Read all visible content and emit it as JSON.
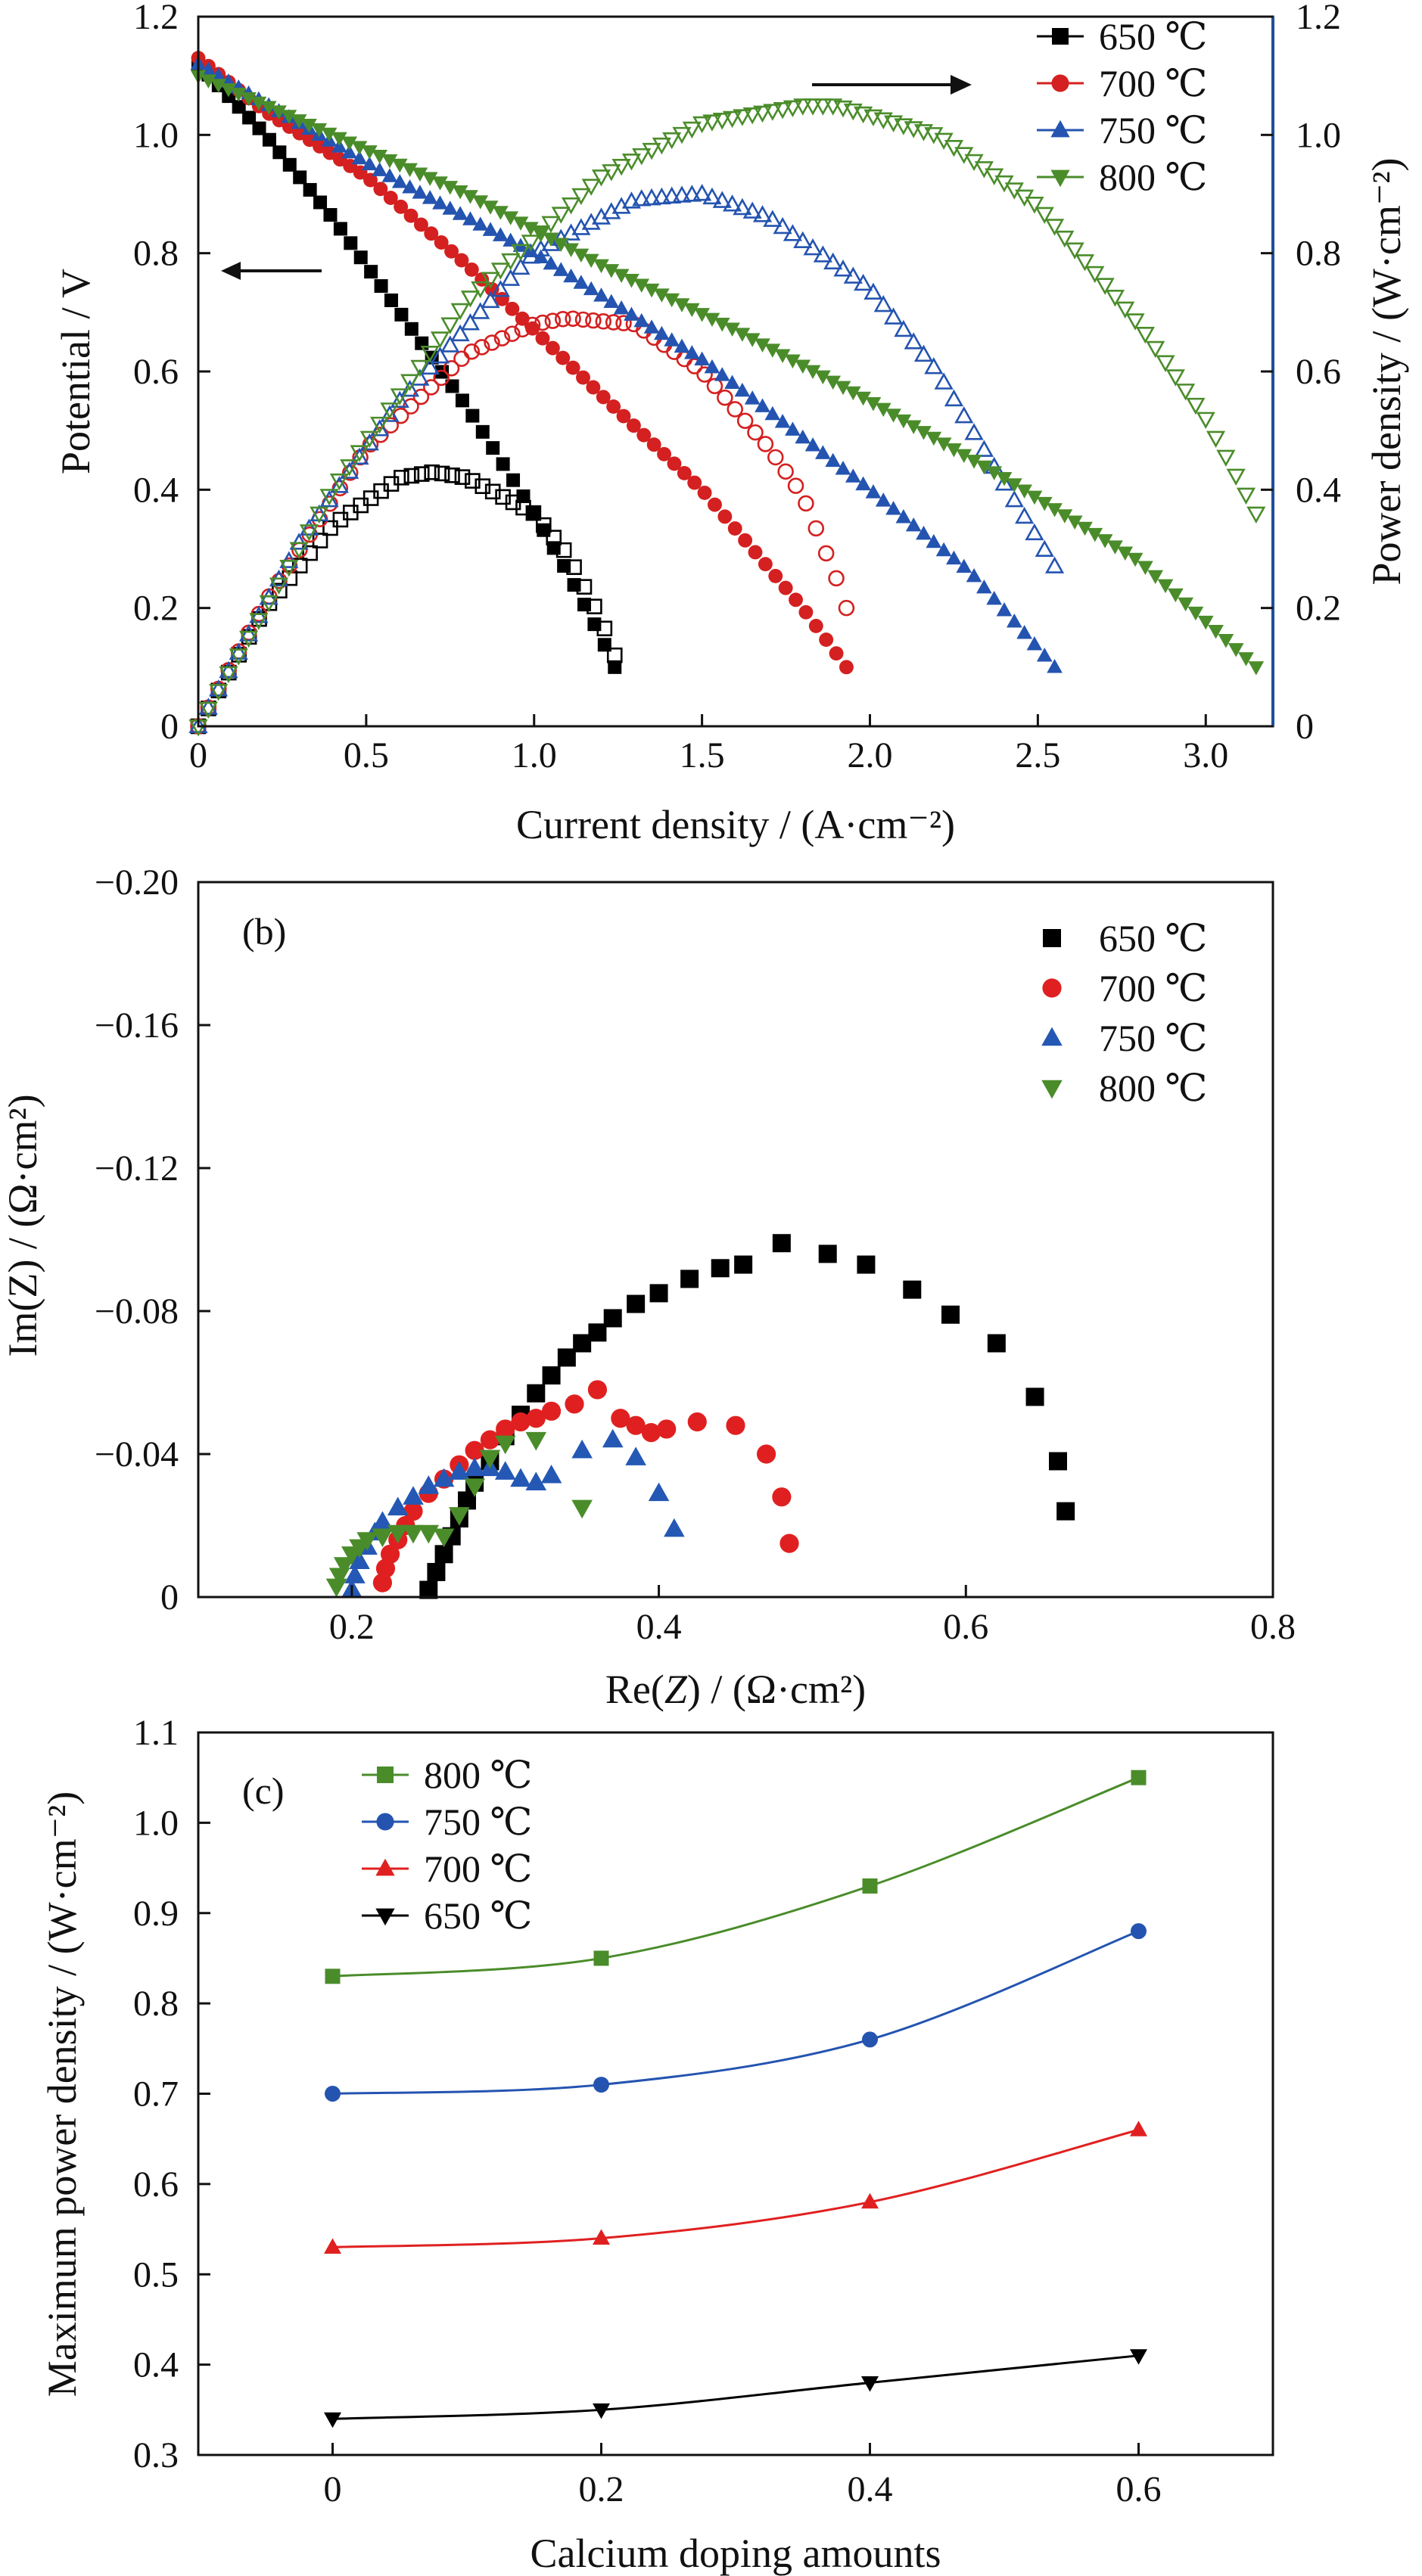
{
  "chart_data": [
    {
      "panel": "a",
      "type": "line",
      "xlabel": "Current density / (A·cm⁻²)",
      "ylabel_left": "Potential / V",
      "ylabel_right": "Power density / (W·cm⁻²)",
      "xlim": [
        0,
        3.2
      ],
      "ylim_left": [
        0,
        1.2
      ],
      "ylim_right": [
        0,
        1.2
      ],
      "xticks": [
        "0",
        "0.5",
        "1.0",
        "1.5",
        "2.0",
        "2.5",
        "3.0"
      ],
      "yticks_left": [
        "0",
        "0.2",
        "0.4",
        "0.6",
        "0.8",
        "1.0",
        "1.2"
      ],
      "yticks_right": [
        "0",
        "0.2",
        "0.4",
        "0.6",
        "0.8",
        "1.0",
        "1.2"
      ],
      "right_axis_color": "#1f4e9c",
      "arrows": [
        "left (Potential)",
        "right (Power density)"
      ],
      "legend_position": "top-right",
      "series": [
        {
          "name": "650 ℃",
          "color": "#000000",
          "marker": "square",
          "voltage": {
            "x": [
              0,
              0.2,
              0.4,
              0.6,
              0.8,
              1.0,
              1.1,
              1.2,
              1.24
            ],
            "y": [
              1.12,
              1.0,
              0.86,
              0.7,
              0.54,
              0.36,
              0.26,
              0.15,
              0.1
            ]
          },
          "power": {
            "x": [
              0,
              0.2,
              0.4,
              0.6,
              0.7,
              0.8,
              1.0,
              1.1,
              1.2,
              1.24
            ],
            "y": [
              0.0,
              0.2,
              0.34,
              0.42,
              0.43,
              0.42,
              0.36,
              0.29,
              0.18,
              0.12
            ]
          }
        },
        {
          "name": "700 ℃",
          "color": "#d42020",
          "marker": "circle",
          "voltage": {
            "x": [
              0,
              0.2,
              0.5,
              0.8,
              1.0,
              1.2,
              1.5,
              1.8,
              1.93
            ],
            "y": [
              1.13,
              1.04,
              0.93,
              0.78,
              0.67,
              0.56,
              0.4,
              0.2,
              0.1
            ]
          },
          "power": {
            "x": [
              0,
              0.2,
              0.5,
              0.8,
              1.0,
              1.1,
              1.3,
              1.5,
              1.7,
              1.8,
              1.9,
              1.93
            ],
            "y": [
              0.0,
              0.21,
              0.47,
              0.63,
              0.68,
              0.69,
              0.68,
              0.6,
              0.47,
              0.39,
              0.25,
              0.2
            ]
          }
        },
        {
          "name": "750 ℃",
          "color": "#2454b0",
          "marker": "triangle-up",
          "voltage": {
            "x": [
              0,
              0.3,
              0.6,
              1.0,
              1.5,
              2.0,
              2.3,
              2.55
            ],
            "y": [
              1.12,
              1.02,
              0.92,
              0.8,
              0.62,
              0.4,
              0.26,
              0.1
            ]
          },
          "power": {
            "x": [
              0,
              0.3,
              0.6,
              1.0,
              1.3,
              1.5,
              1.7,
              2.0,
              2.2,
              2.4,
              2.55
            ],
            "y": [
              0.0,
              0.31,
              0.55,
              0.8,
              0.89,
              0.9,
              0.86,
              0.74,
              0.6,
              0.41,
              0.27
            ]
          }
        },
        {
          "name": "800 ℃",
          "color": "#4a8c2a",
          "marker": "triangle-down",
          "voltage": {
            "x": [
              0,
              0.4,
              0.8,
              1.2,
              1.6,
              2.0,
              2.4,
              2.8,
              3.15
            ],
            "y": [
              1.1,
              1.0,
              0.9,
              0.78,
              0.67,
              0.55,
              0.42,
              0.28,
              0.1
            ]
          },
          "power": {
            "x": [
              0,
              0.4,
              0.8,
              1.2,
              1.5,
              1.8,
              1.9,
              2.2,
              2.5,
              2.8,
              3.0,
              3.15
            ],
            "y": [
              0.0,
              0.4,
              0.72,
              0.93,
              1.02,
              1.05,
              1.05,
              1.0,
              0.88,
              0.68,
              0.52,
              0.36
            ]
          }
        }
      ]
    },
    {
      "panel": "b",
      "type": "scatter",
      "annotation": "(b)",
      "xlabel_prefix": "Re(",
      "xlabel_italic": "Z",
      "xlabel_suffix": ") / (Ω·cm²)",
      "ylabel": "Im(Z) / (Ω·cm²)",
      "xlim": [
        0.1,
        0.8
      ],
      "ylim": [
        0,
        -0.2
      ],
      "xticks": [
        "0.2",
        "0.4",
        "0.6",
        "0.8"
      ],
      "yticks": [
        "0",
        "−0.04",
        "−0.08",
        "−0.12",
        "−0.16",
        "−0.20"
      ],
      "legend_position": "top-right",
      "series": [
        {
          "name": "650 ℃",
          "color": "#000000",
          "marker": "square",
          "x": [
            0.25,
            0.255,
            0.26,
            0.265,
            0.27,
            0.275,
            0.28,
            0.29,
            0.3,
            0.31,
            0.32,
            0.33,
            0.34,
            0.35,
            0.36,
            0.37,
            0.385,
            0.4,
            0.42,
            0.44,
            0.455,
            0.48,
            0.51,
            0.535,
            0.565,
            0.59,
            0.62,
            0.645,
            0.66,
            0.665
          ],
          "y": [
            -0.002,
            -0.007,
            -0.012,
            -0.017,
            -0.022,
            -0.027,
            -0.032,
            -0.038,
            -0.045,
            -0.051,
            -0.057,
            -0.062,
            -0.067,
            -0.071,
            -0.074,
            -0.078,
            -0.082,
            -0.085,
            -0.089,
            -0.092,
            -0.093,
            -0.099,
            -0.096,
            -0.093,
            -0.086,
            -0.079,
            -0.071,
            -0.056,
            -0.038,
            -0.024
          ]
        },
        {
          "name": "700 ℃",
          "color": "#e02020",
          "marker": "circle",
          "x": [
            0.22,
            0.222,
            0.225,
            0.23,
            0.235,
            0.24,
            0.25,
            0.26,
            0.27,
            0.28,
            0.29,
            0.3,
            0.31,
            0.32,
            0.33,
            0.345,
            0.36,
            0.375,
            0.385,
            0.395,
            0.405,
            0.425,
            0.45,
            0.47,
            0.48,
            0.485
          ],
          "y": [
            -0.004,
            -0.008,
            -0.012,
            -0.016,
            -0.02,
            -0.024,
            -0.029,
            -0.033,
            -0.037,
            -0.041,
            -0.044,
            -0.047,
            -0.049,
            -0.05,
            -0.052,
            -0.054,
            -0.058,
            -0.05,
            -0.048,
            -0.046,
            -0.047,
            -0.049,
            -0.048,
            -0.04,
            -0.028,
            -0.015
          ]
        },
        {
          "name": "750 ℃",
          "color": "#2458b4",
          "marker": "triangle-up",
          "x": [
            0.2,
            0.202,
            0.205,
            0.21,
            0.215,
            0.22,
            0.23,
            0.24,
            0.25,
            0.26,
            0.27,
            0.28,
            0.29,
            0.3,
            0.31,
            0.32,
            0.33,
            0.35,
            0.37,
            0.385,
            0.4,
            0.41
          ],
          "y": [
            -0.002,
            -0.006,
            -0.01,
            -0.014,
            -0.018,
            -0.021,
            -0.025,
            -0.028,
            -0.031,
            -0.033,
            -0.035,
            -0.036,
            -0.036,
            -0.035,
            -0.033,
            -0.032,
            -0.034,
            -0.041,
            -0.044,
            -0.039,
            -0.029,
            -0.019
          ]
        },
        {
          "name": "800 ℃",
          "color": "#4a8c2a",
          "marker": "triangle-down",
          "x": [
            0.19,
            0.192,
            0.195,
            0.2,
            0.205,
            0.21,
            0.22,
            0.23,
            0.24,
            0.25,
            0.26,
            0.27,
            0.28,
            0.29,
            0.3,
            0.32,
            0.35
          ],
          "y": [
            -0.003,
            -0.006,
            -0.009,
            -0.012,
            -0.014,
            -0.016,
            -0.017,
            -0.018,
            -0.018,
            -0.018,
            -0.017,
            -0.023,
            -0.031,
            -0.039,
            -0.043,
            -0.044,
            -0.025
          ]
        }
      ]
    },
    {
      "panel": "c",
      "type": "line",
      "annotation": "(c)",
      "xlabel": "Calcium doping amounts",
      "ylabel": "Maximum power density / (W·cm⁻²)",
      "xlim": [
        -0.1,
        0.7
      ],
      "ylim": [
        0.3,
        1.1
      ],
      "xticks": [
        "0",
        "0.2",
        "0.4",
        "0.6"
      ],
      "yticks": [
        "0.3",
        "0.4",
        "0.5",
        "0.6",
        "0.7",
        "0.8",
        "0.9",
        "1.0",
        "1.1"
      ],
      "x": [
        0,
        0.2,
        0.4,
        0.6
      ],
      "legend_position": "top-left",
      "series": [
        {
          "name": "800 ℃",
          "color": "#4a8c2a",
          "marker": "square",
          "values": [
            0.83,
            0.85,
            0.93,
            1.05
          ]
        },
        {
          "name": "750 ℃",
          "color": "#2454b0",
          "marker": "circle",
          "values": [
            0.7,
            0.71,
            0.76,
            0.88
          ]
        },
        {
          "name": "700 ℃",
          "color": "#e02020",
          "marker": "triangle-up",
          "values": [
            0.53,
            0.54,
            0.58,
            0.66
          ]
        },
        {
          "name": "650 ℃",
          "color": "#000000",
          "marker": "triangle-down",
          "values": [
            0.34,
            0.35,
            0.38,
            0.41
          ]
        }
      ]
    }
  ]
}
